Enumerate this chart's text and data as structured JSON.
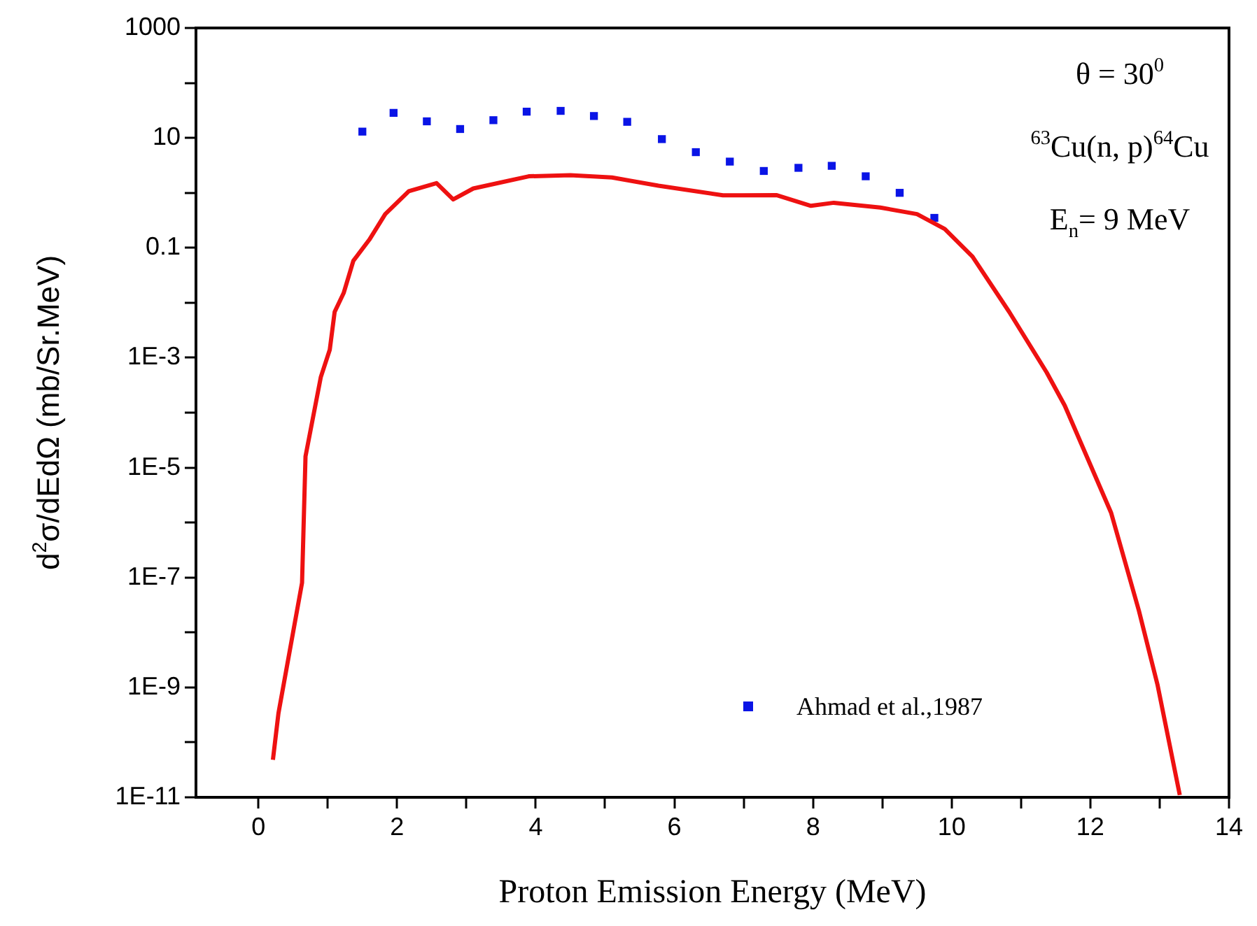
{
  "chart_data": {
    "type": "line",
    "xlabel": "Proton Emission Energy (MeV)",
    "ylabel": "d$^{2}$σ/dEdΩ (mb/Sr.MeV)",
    "log": "y",
    "grid": false,
    "legend": "bottom",
    "xlim": [
      -0.9,
      14
    ],
    "xticks": [
      0,
      {
        "value": 1,
        "label": null
      },
      2,
      {
        "value": 3,
        "label": null
      },
      4,
      {
        "value": 5,
        "label": null
      },
      6,
      {
        "value": 7,
        "label": null
      },
      8,
      {
        "value": 9,
        "label": null
      },
      10,
      {
        "value": 11,
        "label": null
      },
      12,
      {
        "value": 13,
        "label": null
      },
      14
    ],
    "ylim": [
      1e-11,
      1000
    ],
    "yticks": [
      1000,
      {
        "value": 100,
        "label": null
      },
      10,
      {
        "value": 1,
        "label": null
      },
      0.1,
      {
        "value": 0.01,
        "label": null
      },
      {
        "value": 0.001,
        "label": "1E-3"
      },
      {
        "value": 0.0001,
        "label": null
      },
      {
        "value": 1e-05,
        "label": "1E-5"
      },
      {
        "value": 1e-06,
        "label": null
      },
      {
        "value": 1e-07,
        "label": "1E-7"
      },
      {
        "value": 1e-08,
        "label": null
      },
      {
        "value": 1e-09,
        "label": "1E-9"
      },
      {
        "value": 1e-10,
        "label": null
      },
      {
        "value": 1e-11,
        "label": "1E-11"
      }
    ],
    "annotations": [
      "θ = 30$^{0}$",
      "$^{63}$Cu(n, p)$^{64}$Cu",
      "E$_{n}$= 9 MeV"
    ],
    "series": [
      {
        "color": "#ee1111",
        "line_style": "solid",
        "marker": "none",
        "x": [
          0.21,
          0.29,
          0.63,
          0.68,
          0.9,
          1.03,
          1.1,
          1.23,
          1.37,
          1.6,
          1.83,
          2.17,
          2.57,
          2.81,
          3.1,
          3.9,
          4.5,
          5.1,
          5.77,
          6.7,
          6.97,
          7.47,
          7.97,
          8.3,
          8.97,
          9.5,
          9.9,
          10.3,
          10.83,
          11.37,
          11.63,
          12.3,
          12.7,
          12.97,
          13.29
        ],
        "values": [
          4.8e-11,
          3.4e-10,
          8e-08,
          1.6e-05,
          0.00044,
          0.0014,
          0.0068,
          0.015,
          0.058,
          0.14,
          0.41,
          1.07,
          1.5,
          0.76,
          1.2,
          2.0,
          2.1,
          1.9,
          1.35,
          0.9,
          0.9,
          0.91,
          0.58,
          0.66,
          0.54,
          0.41,
          0.22,
          0.069,
          0.0068,
          0.00054,
          0.000135,
          1.5e-06,
          2.5e-08,
          1.1e-09,
          1.1e-11
        ]
      },
      {
        "type": "scatter",
        "name": "Ahmad et al.,1987",
        "color": "#0a14e6",
        "marker": "square",
        "x": [
          1.5,
          1.95,
          2.43,
          2.91,
          3.39,
          3.87,
          4.36,
          4.84,
          5.32,
          5.82,
          6.31,
          6.8,
          7.29,
          7.79,
          8.27,
          8.76,
          9.25,
          9.75
        ],
        "values": [
          13,
          28.5,
          20,
          14.5,
          21,
          30,
          31,
          25,
          19.6,
          9.5,
          5.5,
          3.7,
          2.5,
          2.85,
          3.1,
          2.0,
          1.0,
          0.35
        ]
      }
    ]
  }
}
